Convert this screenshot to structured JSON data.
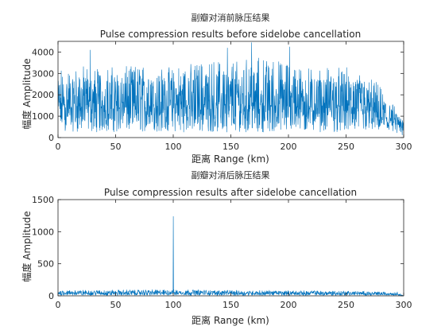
{
  "chart_data": [
    {
      "type": "line",
      "title_cn": "副瓣对消前脉压结果",
      "title": "Pulse compression results before sidelobe cancellation",
      "xlabel": "距离 Range (km)",
      "ylabel": "幅度 Amplitude",
      "xlim": [
        0,
        300
      ],
      "ylim": [
        0,
        4500
      ],
      "xticks": [
        "0",
        "50",
        "100",
        "150",
        "200",
        "250",
        "300"
      ],
      "yticks": [
        "0",
        "1000",
        "2000",
        "3000",
        "4000"
      ],
      "color": "#0072BD",
      "grid": false,
      "series_profile": {
        "x": [
          0,
          25,
          50,
          75,
          100,
          125,
          150,
          175,
          200,
          225,
          250,
          275,
          300
        ],
        "typical_low": [
          300,
          250,
          250,
          250,
          250,
          250,
          250,
          250,
          250,
          250,
          250,
          300,
          50
        ],
        "typical_high": [
          3200,
          3400,
          3300,
          3400,
          3300,
          3600,
          3700,
          3800,
          3500,
          3300,
          3300,
          2700,
          900
        ],
        "mean": [
          1400,
          1400,
          1350,
          1400,
          1400,
          1400,
          1450,
          1450,
          1400,
          1350,
          1300,
          1100,
          400
        ]
      },
      "peaks": [
        {
          "x": 28,
          "y": 4100
        },
        {
          "x": 147,
          "y": 4200
        },
        {
          "x": 168,
          "y": 4450
        },
        {
          "x": 201,
          "y": 4250
        }
      ]
    },
    {
      "type": "line",
      "title_cn": "副瓣对消后脉压结果",
      "title": "Pulse compression results after sidelobe cancellation",
      "xlabel": "距离 Range (km)",
      "ylabel": "幅度 Amplitude",
      "xlim": [
        0,
        300
      ],
      "ylim": [
        0,
        1500
      ],
      "xticks": [
        "0",
        "50",
        "100",
        "150",
        "200",
        "250",
        "300"
      ],
      "yticks": [
        "0",
        "500",
        "1000",
        "1500"
      ],
      "color": "#0072BD",
      "grid": false,
      "series_profile": {
        "x": [
          0,
          50,
          100,
          150,
          200,
          250,
          295,
          300
        ],
        "typical_low": [
          5,
          5,
          5,
          5,
          5,
          5,
          5,
          0
        ],
        "typical_high": [
          90,
          95,
          100,
          90,
          85,
          80,
          60,
          0
        ],
        "mean": [
          40,
          40,
          45,
          40,
          38,
          35,
          25,
          0
        ]
      },
      "peaks": [
        {
          "x": 100,
          "y": 1240
        }
      ]
    }
  ]
}
